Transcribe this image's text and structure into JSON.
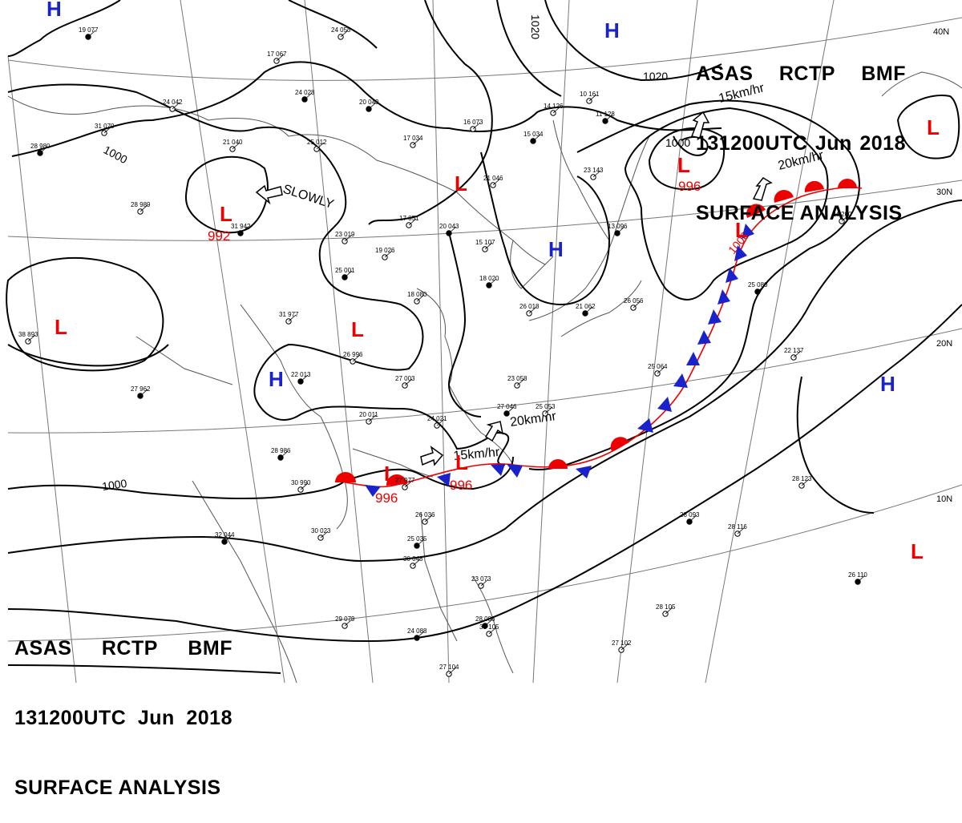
{
  "header": {
    "agency_line": [
      "ASAS",
      "RCTP",
      "BMF"
    ],
    "time_line": [
      "131200UTC",
      "Jun",
      "2018"
    ],
    "title_line": "SURFACE ANALYSIS"
  },
  "colors": {
    "low": "#ee0000",
    "high": "#1a22cc",
    "warm_front": "#ee0000",
    "cold_front": "#1a22cc",
    "isobar": "#000000",
    "grid": "#777777",
    "coast": "#555555"
  },
  "lat_labels": [
    "40N",
    "30N",
    "20N",
    "10N"
  ],
  "isobar_labels": [
    "1000",
    "1020",
    "1020",
    "1000",
    "1000",
    "1000"
  ],
  "pressure_centers": [
    {
      "type": "L",
      "value": "992"
    },
    {
      "type": "L",
      "value": "996"
    },
    {
      "type": "L",
      "value": "996"
    },
    {
      "type": "L",
      "value": "996"
    },
    {
      "type": "L",
      "value": "1000"
    },
    {
      "type": "L",
      "value": ""
    },
    {
      "type": "L",
      "value": ""
    },
    {
      "type": "L",
      "value": ""
    },
    {
      "type": "L",
      "value": ""
    },
    {
      "type": "L",
      "value": ""
    },
    {
      "type": "H",
      "value": ""
    },
    {
      "type": "H",
      "value": ""
    },
    {
      "type": "H",
      "value": ""
    },
    {
      "type": "H",
      "value": ""
    },
    {
      "type": "H",
      "value": ""
    }
  ],
  "motion_labels": [
    "SLOWLY",
    "15km/hr",
    "20km/hr",
    "20km/hr",
    "15km/hr"
  ],
  "station_samples": [
    "19 077",
    "24 055",
    "17 067",
    "24 028",
    "24 042",
    "31 070",
    "28 980",
    "21 040",
    "25 012",
    "20 049",
    "17 034",
    "16 073",
    "15 034",
    "14 126",
    "10 161",
    "11 128",
    "21 046",
    "28 989",
    "31 942",
    "23 019",
    "17 051",
    "20 043",
    "15 107",
    "19 026",
    "25 001",
    "18 080",
    "31 977",
    "18 020",
    "26 996",
    "27 003",
    "22 013",
    "20 011",
    "24 021",
    "28 986",
    "30 990",
    "27 977",
    "32 044",
    "30 023",
    "26 036",
    "25 035",
    "30 048",
    "29 079",
    "24 088",
    "27 104",
    "23 073",
    "28 086",
    "30 105",
    "38 893",
    "27 962",
    "23 058",
    "25 053",
    "27 046",
    "25 064",
    "26 056",
    "25 080",
    "22 137",
    "24 200",
    "28 093",
    "28 116",
    "28 123",
    "26 110",
    "28 105",
    "27 102",
    "13 096",
    "23 143",
    "26 018",
    "21 062"
  ]
}
